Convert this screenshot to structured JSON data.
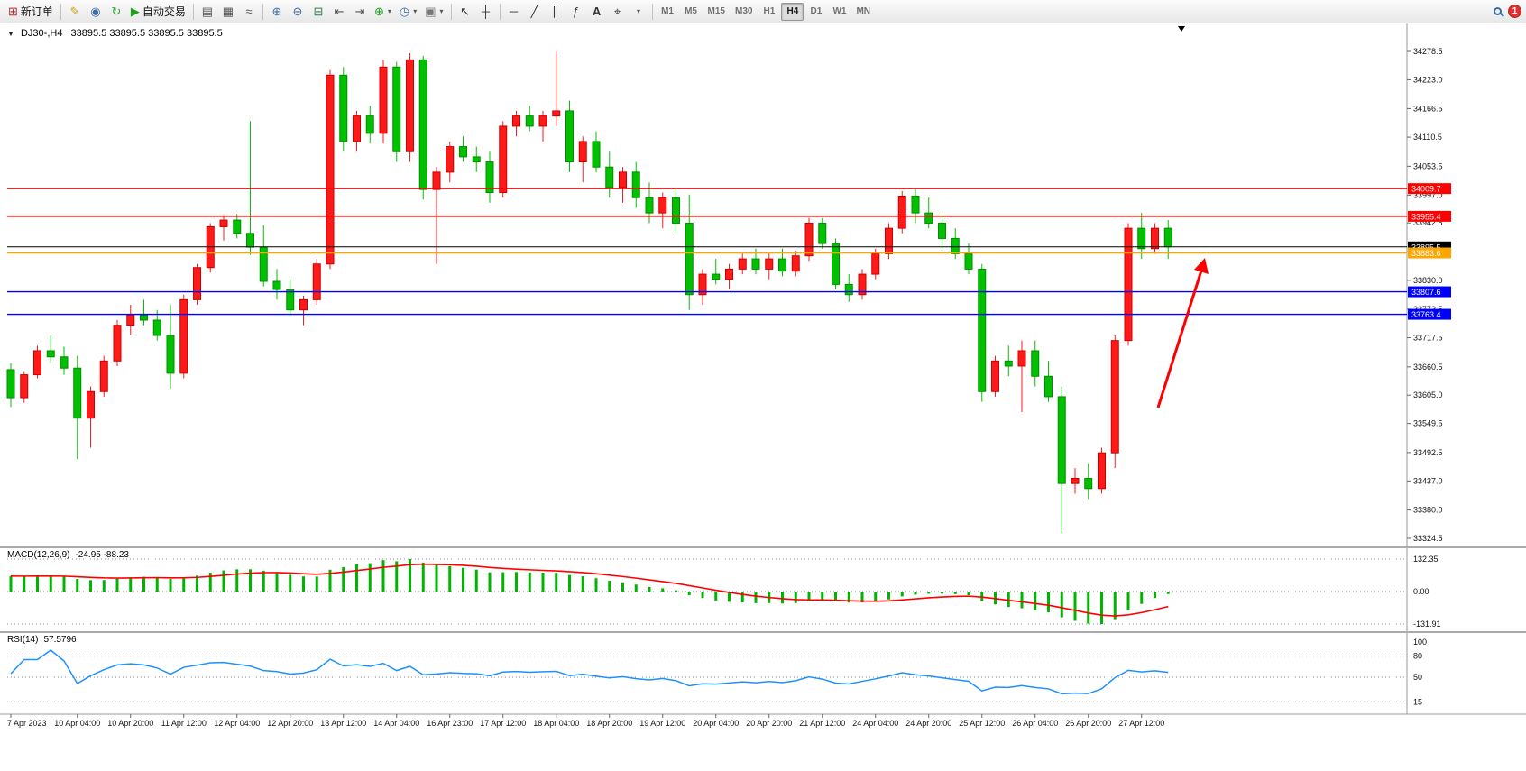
{
  "toolbar": {
    "new_order_label": "新订单",
    "auto_trading_label": "自动交易",
    "timeframes": [
      "M1",
      "M5",
      "M15",
      "M30",
      "H1",
      "H4",
      "D1",
      "W1",
      "MN"
    ],
    "active_timeframe": "H4",
    "notification_count": "1"
  },
  "icons": {
    "collapse_arrow": "▼",
    "new_order": "⊞",
    "metaeditor": "✎",
    "profiles": "◉",
    "refresh": "↻",
    "autotrading_play": "▶",
    "bar_chart": "▤",
    "candlestick_chart": "▦",
    "line_chart": "≈",
    "zoom_in": "⊕",
    "zoom_out": "⊖",
    "tile_windows": "⊟",
    "chart_shift": "⇤",
    "auto_scroll": "⇥",
    "indicators_add": "⊕",
    "clock": "◷",
    "template": "▣",
    "dropdown": "▾",
    "cursor": "↖",
    "crosshair": "┼",
    "hline": "─",
    "trendline": "╱",
    "channel": "∥",
    "fibonacci": "ƒ",
    "text": "A",
    "text_label": "⌖"
  },
  "chart": {
    "header": {
      "symbol_period": "DJ30-,H4",
      "ohlc": "33895.5 33895.5 33895.5 33895.5"
    },
    "price_axis_ticks": [
      "34278.5",
      "34223.0",
      "34166.5",
      "34110.5",
      "34053.5",
      "33997.0",
      "33942.5",
      "33886.0",
      "33830.0",
      "33773.5",
      "33717.5",
      "33660.5",
      "33605.0",
      "33549.5",
      "33492.5",
      "33437.0",
      "33380.0",
      "33324.5"
    ],
    "price_lines": [
      {
        "price": 34009.7,
        "label": "34009.7",
        "color": "#ff0000",
        "type": "resistance"
      },
      {
        "price": 33955.4,
        "label": "33955.4",
        "color": "#ff0000",
        "type": "resistance"
      },
      {
        "price": 33895.5,
        "label": "33895.5",
        "color": "#000000",
        "type": "bid"
      },
      {
        "price": 33883.6,
        "label": "33883.6",
        "color": "#ffa500",
        "type": "level"
      },
      {
        "price": 33807.6,
        "label": "33807.6",
        "color": "#0000ff",
        "type": "support"
      },
      {
        "price": 33763.4,
        "label": "33763.4",
        "color": "#0000ff",
        "type": "support"
      }
    ],
    "time_axis_labels": [
      "7 Apr 2023",
      "10 Apr 04:00",
      "10 Apr 20:00",
      "11 Apr 12:00",
      "12 Apr 04:00",
      "12 Apr 20:00",
      "13 Apr 12:00",
      "14 Apr 04:00",
      "16 Apr 23:00",
      "17 Apr 12:00",
      "18 Apr 04:00",
      "18 Apr 20:00",
      "19 Apr 12:00",
      "20 Apr 04:00",
      "20 Apr 20:00",
      "21 Apr 12:00",
      "24 Apr 04:00",
      "24 Apr 20:00",
      "25 Apr 12:00",
      "26 Apr 04:00",
      "26 Apr 20:00",
      "27 Apr 12:00"
    ],
    "colors": {
      "up": "#ff1a1a",
      "up_border": "#cc0000",
      "down": "#00c000",
      "down_border": "#008f00",
      "macd_histogram": "#00b400",
      "macd_signal": "#ff0000",
      "rsi_line": "#1e90ff",
      "bid_line": "#000000",
      "annotation_arrow": "#ff0000"
    }
  },
  "chart_data": {
    "type": "candlestick",
    "symbol": "DJ30-",
    "period": "H4",
    "price_range": [
      33324.5,
      34278.5
    ],
    "note": "up candles red, down candles green (CN convention)",
    "label_indices": [
      0,
      5,
      9,
      13,
      17,
      21,
      25,
      29,
      33,
      37,
      41,
      45,
      49,
      53,
      57,
      61,
      65,
      69,
      73,
      77,
      81,
      85
    ],
    "candles": [
      [
        33655,
        33668,
        33582,
        33600
      ],
      [
        33600,
        33652,
        33590,
        33645
      ],
      [
        33645,
        33702,
        33638,
        33692
      ],
      [
        33692,
        33722,
        33668,
        33680
      ],
      [
        33680,
        33700,
        33645,
        33658
      ],
      [
        33658,
        33682,
        33480,
        33560
      ],
      [
        33560,
        33622,
        33502,
        33612
      ],
      [
        33612,
        33682,
        33602,
        33672
      ],
      [
        33672,
        33752,
        33662,
        33742
      ],
      [
        33742,
        33782,
        33722,
        33762
      ],
      [
        33762,
        33792,
        33742,
        33752
      ],
      [
        33752,
        33772,
        33712,
        33722
      ],
      [
        33722,
        33782,
        33618,
        33648
      ],
      [
        33648,
        33802,
        33638,
        33792
      ],
      [
        33792,
        33862,
        33782,
        33855
      ],
      [
        33855,
        33942,
        33845,
        33935
      ],
      [
        33935,
        33958,
        33908,
        33948
      ],
      [
        33948,
        33960,
        33912,
        33922
      ],
      [
        33922,
        34142,
        33880,
        33895
      ],
      [
        33895,
        33938,
        33818,
        33828
      ],
      [
        33828,
        33852,
        33792,
        33812
      ],
      [
        33812,
        33832,
        33762,
        33772
      ],
      [
        33772,
        33800,
        33742,
        33792
      ],
      [
        33792,
        33872,
        33782,
        33862
      ],
      [
        33862,
        34242,
        33852,
        34232
      ],
      [
        34232,
        34248,
        34082,
        34102
      ],
      [
        34102,
        34162,
        34082,
        34152
      ],
      [
        34152,
        34172,
        34098,
        34118
      ],
      [
        34118,
        34262,
        34098,
        34248
      ],
      [
        34248,
        34258,
        34062,
        34082
      ],
      [
        34082,
        34275,
        34062,
        34262
      ],
      [
        34262,
        34270,
        33988,
        34008
      ],
      [
        34008,
        34052,
        33862,
        34042
      ],
      [
        34042,
        34102,
        34022,
        34092
      ],
      [
        34092,
        34112,
        34062,
        34072
      ],
      [
        34072,
        34092,
        34042,
        34062
      ],
      [
        34062,
        34082,
        33982,
        34002
      ],
      [
        34002,
        34142,
        33992,
        34132
      ],
      [
        34132,
        34162,
        34112,
        34152
      ],
      [
        34152,
        34172,
        34122,
        34132
      ],
      [
        34132,
        34162,
        34102,
        34152
      ],
      [
        34152,
        34278,
        34132,
        34162
      ],
      [
        34162,
        34182,
        34042,
        34062
      ],
      [
        34062,
        34112,
        34022,
        34102
      ],
      [
        34102,
        34122,
        34042,
        34052
      ],
      [
        34052,
        34082,
        33992,
        34012
      ],
      [
        34012,
        34052,
        33982,
        34042
      ],
      [
        34042,
        34062,
        33972,
        33992
      ],
      [
        33992,
        34022,
        33942,
        33962
      ],
      [
        33962,
        34002,
        33932,
        33992
      ],
      [
        33992,
        34012,
        33922,
        33942
      ],
      [
        33942,
        33998,
        33772,
        33802
      ],
      [
        33802,
        33852,
        33782,
        33842
      ],
      [
        33842,
        33872,
        33822,
        33832
      ],
      [
        33832,
        33862,
        33812,
        33852
      ],
      [
        33852,
        33882,
        33842,
        33872
      ],
      [
        33872,
        33892,
        33842,
        33852
      ],
      [
        33852,
        33882,
        33832,
        33872
      ],
      [
        33872,
        33892,
        33838,
        33848
      ],
      [
        33848,
        33888,
        33838,
        33878
      ],
      [
        33878,
        33952,
        33868,
        33942
      ],
      [
        33942,
        33952,
        33892,
        33902
      ],
      [
        33902,
        33912,
        33812,
        33822
      ],
      [
        33822,
        33842,
        33788,
        33802
      ],
      [
        33802,
        33852,
        33792,
        33842
      ],
      [
        33842,
        33892,
        33832,
        33882
      ],
      [
        33882,
        33942,
        33872,
        33932
      ],
      [
        33932,
        34005,
        33922,
        33995
      ],
      [
        33995,
        34008,
        33942,
        33962
      ],
      [
        33962,
        33992,
        33932,
        33942
      ],
      [
        33942,
        33962,
        33892,
        33912
      ],
      [
        33912,
        33932,
        33872,
        33882
      ],
      [
        33882,
        33902,
        33842,
        33852
      ],
      [
        33852,
        33862,
        33592,
        33612
      ],
      [
        33612,
        33682,
        33602,
        33672
      ],
      [
        33672,
        33702,
        33642,
        33662
      ],
      [
        33662,
        33712,
        33572,
        33692
      ],
      [
        33692,
        33712,
        33622,
        33642
      ],
      [
        33642,
        33672,
        33592,
        33602
      ],
      [
        33602,
        33622,
        33335,
        33432
      ],
      [
        33432,
        33462,
        33412,
        33442
      ],
      [
        33442,
        33472,
        33402,
        33422
      ],
      [
        33422,
        33502,
        33412,
        33492
      ],
      [
        33492,
        33722,
        33462,
        33712
      ],
      [
        33712,
        33942,
        33702,
        33932
      ],
      [
        33932,
        33962,
        33872,
        33892
      ],
      [
        33892,
        33942,
        33882,
        33932
      ],
      [
        33932,
        33948,
        33872,
        33895.5
      ]
    ]
  },
  "macd": {
    "label": "MACD(12,26,9)",
    "values_text": "-24.95 -88.23",
    "params": [
      12,
      26,
      9
    ],
    "axis": [
      "132.35",
      "0.00",
      "-131.91"
    ]
  },
  "rsi": {
    "label": "RSI(14)",
    "value_text": "57.5796",
    "period": 14,
    "levels": [
      "100",
      "80",
      "50",
      "15"
    ]
  }
}
